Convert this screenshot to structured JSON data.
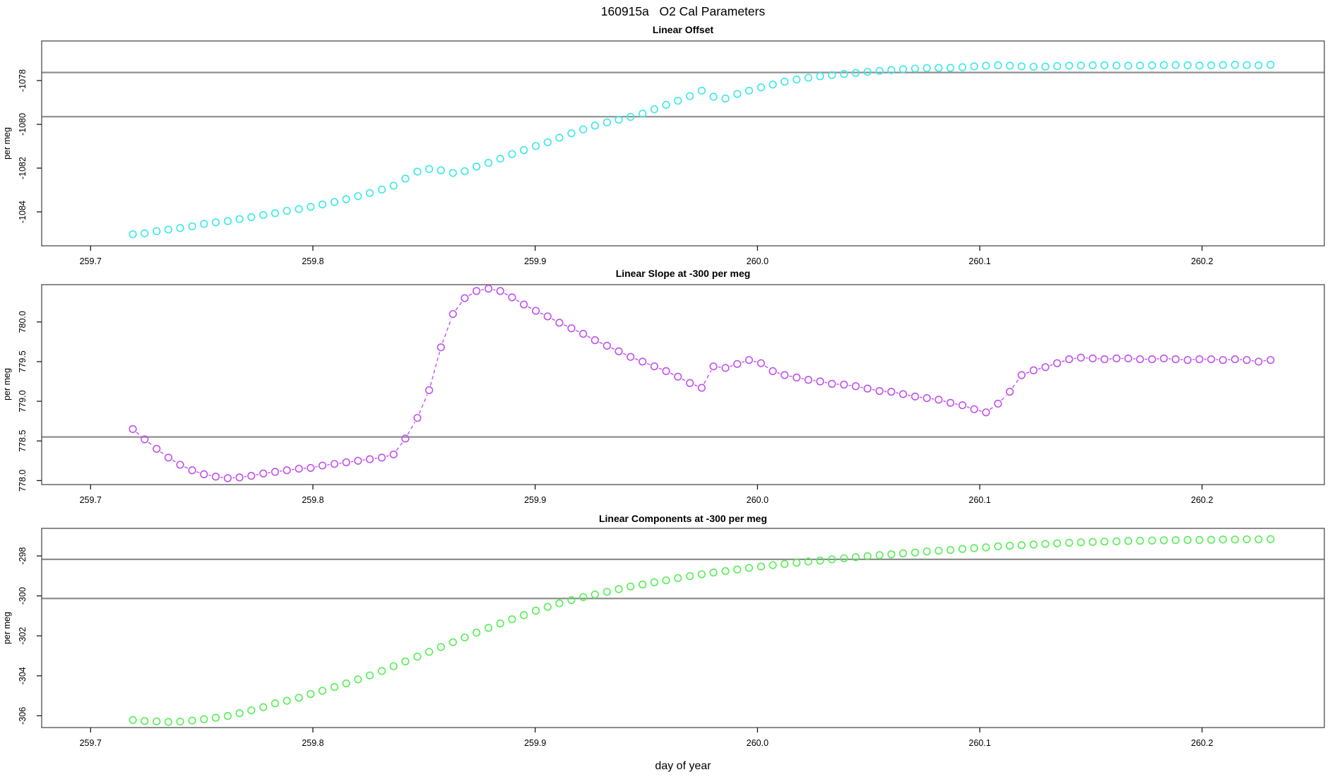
{
  "figure": {
    "title": "160915a   O2 Cal Parameters",
    "xlabel": "day of year",
    "background": "#ffffff",
    "text_color": "#000000",
    "box_color": "#4d4d4d",
    "tick_color": "#1a1a1a",
    "ref_line_color": "#8f8f8f"
  },
  "chart_data": {
    "type": "scatter",
    "x_axis_label": "day of year",
    "xlim": [
      259.678,
      260.255
    ],
    "xticks": [
      259.7,
      259.8,
      259.9,
      260.0,
      260.1,
      260.2
    ],
    "xtick_labels": [
      "259.7",
      "259.8",
      "259.9",
      "260.0",
      "260.1",
      "260.2"
    ],
    "x": [
      259.719,
      259.7243,
      259.7297,
      259.735,
      259.7403,
      259.7457,
      259.751,
      259.7563,
      259.7617,
      259.767,
      259.7723,
      259.7777,
      259.783,
      259.7883,
      259.7937,
      259.799,
      259.8043,
      259.8097,
      259.815,
      259.8203,
      259.8256,
      259.831,
      259.8363,
      259.8416,
      259.847,
      259.8523,
      259.8576,
      259.863,
      259.8683,
      259.8736,
      259.879,
      259.8843,
      259.8896,
      259.8949,
      259.9003,
      259.9056,
      259.9109,
      259.9163,
      259.9216,
      259.9269,
      259.9323,
      259.9376,
      259.9429,
      259.9483,
      259.9536,
      259.9589,
      259.9642,
      259.9696,
      259.9749,
      259.9802,
      259.9856,
      259.9909,
      259.9962,
      260.0016,
      260.0069,
      260.0122,
      260.0176,
      260.0229,
      260.0282,
      260.0335,
      260.0389,
      260.0442,
      260.0495,
      260.0549,
      260.0602,
      260.0655,
      260.0709,
      260.0762,
      260.0815,
      260.0868,
      260.0922,
      260.0975,
      260.1028,
      260.1082,
      260.1135,
      260.1188,
      260.1242,
      260.1295,
      260.1348,
      260.1402,
      260.1455,
      260.1508,
      260.1561,
      260.1615,
      260.1668,
      260.1721,
      260.1775,
      260.1828,
      260.1881,
      260.1935,
      260.1988,
      260.2041,
      260.2094,
      260.2148,
      260.2201,
      260.2254,
      260.2308
    ],
    "panels": [
      {
        "title": "Linear Offset",
        "ylabel": "per meg",
        "color": "#3ae8e8",
        "marker": "open-circle",
        "line_between_points": "none",
        "ylim": [
          -1085.55,
          -1076.19
        ],
        "yticks": [
          -1078,
          -1080,
          -1082,
          -1084
        ],
        "ytick_labels": [
          "-1078",
          "-1080",
          "-1082",
          "-1084"
        ],
        "ref_lines": [
          -1077.63,
          -1079.65
        ],
        "y": [
          -1085.02,
          -1084.98,
          -1084.88,
          -1084.81,
          -1084.74,
          -1084.66,
          -1084.55,
          -1084.48,
          -1084.42,
          -1084.33,
          -1084.24,
          -1084.14,
          -1084.06,
          -1083.95,
          -1083.87,
          -1083.77,
          -1083.66,
          -1083.55,
          -1083.42,
          -1083.28,
          -1083.14,
          -1082.98,
          -1082.8,
          -1082.48,
          -1082.16,
          -1082.04,
          -1082.1,
          -1082.22,
          -1082.14,
          -1081.93,
          -1081.76,
          -1081.57,
          -1081.36,
          -1081.18,
          -1080.99,
          -1080.82,
          -1080.61,
          -1080.41,
          -1080.23,
          -1080.06,
          -1079.91,
          -1079.79,
          -1079.66,
          -1079.51,
          -1079.31,
          -1079.11,
          -1078.92,
          -1078.71,
          -1078.46,
          -1078.74,
          -1078.82,
          -1078.61,
          -1078.46,
          -1078.31,
          -1078.18,
          -1078.05,
          -1077.95,
          -1077.87,
          -1077.8,
          -1077.75,
          -1077.7,
          -1077.65,
          -1077.6,
          -1077.56,
          -1077.52,
          -1077.48,
          -1077.45,
          -1077.43,
          -1077.42,
          -1077.42,
          -1077.39,
          -1077.35,
          -1077.32,
          -1077.3,
          -1077.32,
          -1077.35,
          -1077.37,
          -1077.36,
          -1077.34,
          -1077.32,
          -1077.31,
          -1077.3,
          -1077.3,
          -1077.31,
          -1077.32,
          -1077.31,
          -1077.3,
          -1077.29,
          -1077.29,
          -1077.3,
          -1077.31,
          -1077.3,
          -1077.29,
          -1077.28,
          -1077.29,
          -1077.3,
          -1077.28
        ]
      },
      {
        "title": "Linear Slope at -300 per meg",
        "ylabel": "per meg",
        "color": "#c050ec",
        "marker": "open-circle",
        "line_between_points": "dashed",
        "ylim": [
          777.95,
          780.47
        ],
        "yticks": [
          778.0,
          778.5,
          779.0,
          779.5,
          780.0
        ],
        "ytick_labels": [
          "778.0",
          "778.5",
          "779.0",
          "779.5",
          "780.0"
        ],
        "ref_lines": [
          778.55
        ],
        "y": [
          778.65,
          778.52,
          778.4,
          778.29,
          778.2,
          778.13,
          778.08,
          778.05,
          778.03,
          778.04,
          778.06,
          778.09,
          778.11,
          778.13,
          778.15,
          778.16,
          778.19,
          778.21,
          778.23,
          778.25,
          778.27,
          778.29,
          778.33,
          778.53,
          778.79,
          779.14,
          779.68,
          780.1,
          780.3,
          780.39,
          780.42,
          780.39,
          780.31,
          780.22,
          780.14,
          780.07,
          779.99,
          779.92,
          779.85,
          779.77,
          779.7,
          779.63,
          779.56,
          779.5,
          779.44,
          779.38,
          779.31,
          779.23,
          779.17,
          779.44,
          779.42,
          779.47,
          779.52,
          779.48,
          779.38,
          779.33,
          779.3,
          779.27,
          779.25,
          779.22,
          779.21,
          779.19,
          779.16,
          779.13,
          779.12,
          779.09,
          779.06,
          779.04,
          779.02,
          778.98,
          778.95,
          778.9,
          778.86,
          778.97,
          779.12,
          779.33,
          779.39,
          779.43,
          779.48,
          779.53,
          779.55,
          779.54,
          779.53,
          779.54,
          779.54,
          779.53,
          779.53,
          779.54,
          779.53,
          779.52,
          779.53,
          779.53,
          779.52,
          779.53,
          779.52,
          779.5,
          779.52
        ]
      },
      {
        "title": "Linear Components at -300 per meg",
        "ylabel": "per meg",
        "color": "#55ee55",
        "marker": "open-circle",
        "line_between_points": "none",
        "ylim": [
          -306.59,
          -296.62
        ],
        "yticks": [
          -298,
          -300,
          -302,
          -304,
          -306
        ],
        "ytick_labels": [
          "-298",
          "-300",
          "-302",
          "-304",
          "-306"
        ],
        "ref_lines": [
          -298.17,
          -300.13
        ],
        "y": [
          -306.21,
          -306.26,
          -306.28,
          -306.31,
          -306.29,
          -306.24,
          -306.17,
          -306.1,
          -306.01,
          -305.87,
          -305.73,
          -305.57,
          -305.38,
          -305.25,
          -305.1,
          -304.91,
          -304.75,
          -304.56,
          -304.38,
          -304.18,
          -303.98,
          -303.76,
          -303.52,
          -303.28,
          -303.04,
          -302.8,
          -302.56,
          -302.32,
          -302.08,
          -301.84,
          -301.6,
          -301.38,
          -301.17,
          -300.96,
          -300.74,
          -300.55,
          -300.37,
          -300.21,
          -300.06,
          -299.93,
          -299.8,
          -299.66,
          -299.53,
          -299.43,
          -299.32,
          -299.22,
          -299.11,
          -299.01,
          -298.92,
          -298.83,
          -298.76,
          -298.68,
          -298.6,
          -298.53,
          -298.46,
          -298.4,
          -298.34,
          -298.28,
          -298.23,
          -298.17,
          -298.12,
          -298.06,
          -298.01,
          -297.96,
          -297.92,
          -297.87,
          -297.83,
          -297.78,
          -297.74,
          -297.7,
          -297.65,
          -297.61,
          -297.57,
          -297.52,
          -297.49,
          -297.46,
          -297.43,
          -297.4,
          -297.37,
          -297.34,
          -297.32,
          -297.3,
          -297.28,
          -297.27,
          -297.25,
          -297.24,
          -297.23,
          -297.22,
          -297.21,
          -297.2,
          -297.2,
          -297.19,
          -297.18,
          -297.18,
          -297.17,
          -297.17,
          -297.16
        ]
      }
    ]
  }
}
